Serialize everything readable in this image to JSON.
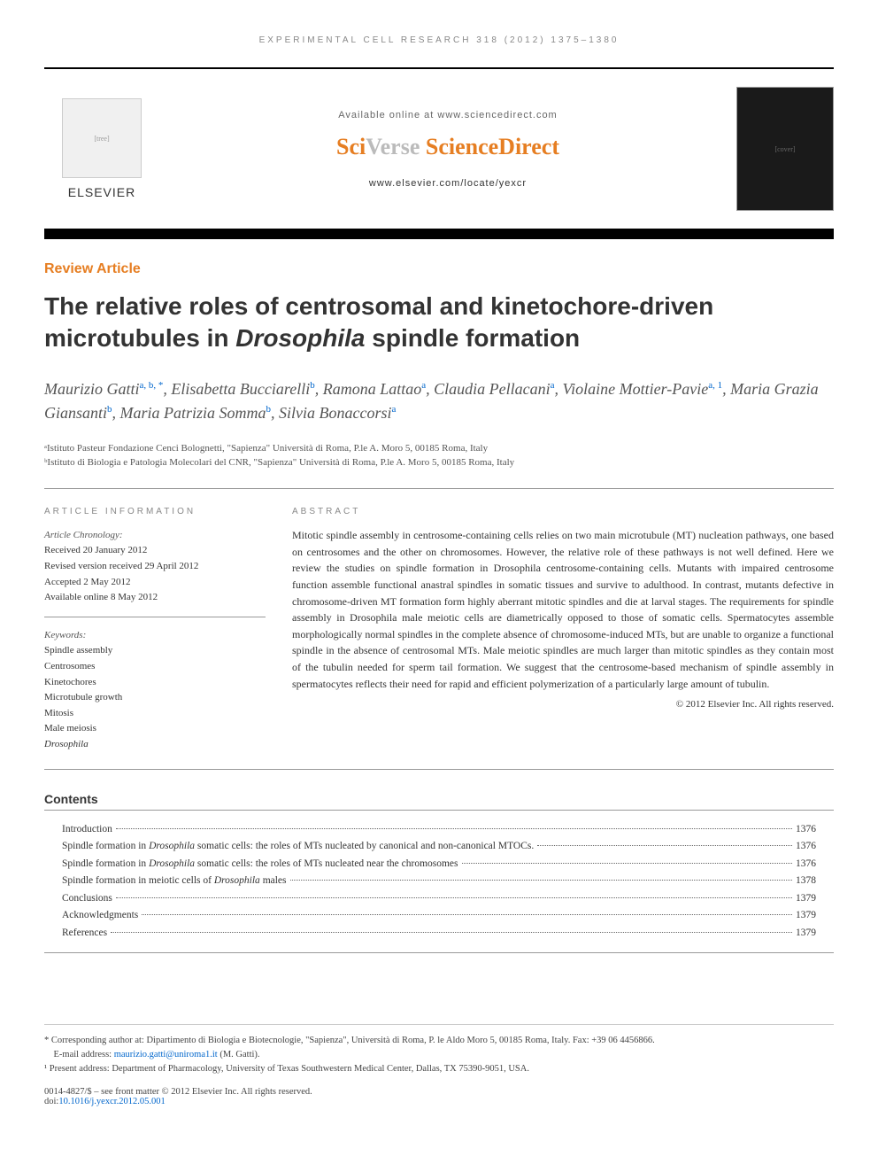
{
  "running_header": "EXPERIMENTAL CELL RESEARCH 318 (2012) 1375–1380",
  "header": {
    "elsevier_label": "ELSEVIER",
    "available_text": "Available online at www.sciencedirect.com",
    "sciverse_sci": "Sci",
    "sciverse_verse": "Verse",
    "sciverse_sd": " ScienceDirect",
    "journal_url": "www.elsevier.com/locate/yexcr"
  },
  "article_type": "Review Article",
  "title_pre": "The relative roles of centrosomal and kinetochore-driven microtubules in ",
  "title_italic": "Drosophila",
  "title_post": " spindle formation",
  "authors_html": "Maurizio Gatti<sup>a, b, *</sup>, Elisabetta Bucciarelli<sup>b</sup>, Ramona Lattao<sup>a</sup>, Claudia Pellacani<sup>a</sup>, Violaine Mottier-Pavie<sup>a, 1</sup>, Maria Grazia Giansanti<sup>b</sup>, Maria Patrizia Somma<sup>b</sup>, Silvia Bonaccorsi<sup>a</sup>",
  "affiliations": [
    "ᵃIstituto Pasteur Fondazione Cenci Bolognetti, \"Sapienza\" Università di Roma, P.le A. Moro 5, 00185 Roma, Italy",
    "ᵇIstituto di Biologia e Patologia Molecolari del CNR, \"Sapienza\" Università di Roma, P.le A. Moro 5, 00185 Roma, Italy"
  ],
  "info": {
    "heading": "ARTICLE INFORMATION",
    "chronology_label": "Article Chronology:",
    "chronology": [
      "Received 20 January 2012",
      "Revised version received 29 April 2012",
      "Accepted 2 May 2012",
      "Available online 8 May 2012"
    ],
    "keywords_label": "Keywords:",
    "keywords": [
      "Spindle assembly",
      "Centrosomes",
      "Kinetochores",
      "Microtubule growth",
      "Mitosis",
      "Male meiosis",
      "Drosophila"
    ]
  },
  "abstract": {
    "heading": "ABSTRACT",
    "text": "Mitotic spindle assembly in centrosome-containing cells relies on two main microtubule (MT) nucleation pathways, one based on centrosomes and the other on chromosomes. However, the relative role of these pathways is not well defined. Here we review the studies on spindle formation in Drosophila centrosome-containing cells. Mutants with impaired centrosome function assemble functional anastral spindles in somatic tissues and survive to adulthood. In contrast, mutants defective in chromosome-driven MT formation form highly aberrant mitotic spindles and die at larval stages. The requirements for spindle assembly in Drosophila male meiotic cells are diametrically opposed to those of somatic cells. Spermatocytes assemble morphologically normal spindles in the complete absence of chromosome-induced MTs, but are unable to organize a functional spindle in the absence of centrosomal MTs. Male meiotic spindles are much larger than mitotic spindles as they contain most of the tubulin needed for sperm tail formation. We suggest that the centrosome-based mechanism of spindle assembly in spermatocytes reflects their need for rapid and efficient polymerization of a particularly large amount of tubulin.",
    "copyright": "© 2012 Elsevier Inc. All rights reserved."
  },
  "contents": {
    "heading": "Contents",
    "items": [
      {
        "title": "Introduction",
        "page": "1376"
      },
      {
        "title": "Spindle formation in Drosophila somatic cells: the roles of MTs nucleated by canonical and non-canonical MTOCs.",
        "page": "1376"
      },
      {
        "title": "Spindle formation in Drosophila somatic cells: the roles of MTs nucleated near the chromosomes",
        "page": "1376"
      },
      {
        "title": "Spindle formation in meiotic cells of Drosophila males",
        "page": "1378"
      },
      {
        "title": "Conclusions",
        "page": "1379"
      },
      {
        "title": "Acknowledgments",
        "page": "1379"
      },
      {
        "title": "References",
        "page": "1379"
      }
    ]
  },
  "footnotes": {
    "corresponding": "* Corresponding author at: Dipartimento di Biologia e Biotecnologie, \"Sapienza\", Università di Roma, P. le Aldo Moro 5, 00185 Roma, Italy. Fax: +39 06 4456866.",
    "email_label": "E-mail address: ",
    "email": "maurizio.gatti@uniroma1.it",
    "email_suffix": " (M. Gatti).",
    "present": "¹ Present address: Department of Pharmacology, University of Texas Southwestern Medical Center, Dallas, TX 75390-9051, USA."
  },
  "doi": {
    "line1": "0014-4827/$ – see front matter © 2012 Elsevier Inc. All rights reserved.",
    "line2_prefix": "doi:",
    "doi_link": "10.1016/j.yexcr.2012.05.001"
  },
  "colors": {
    "accent": "#e67e22",
    "link": "#0066cc",
    "text": "#333333",
    "muted": "#888888"
  }
}
